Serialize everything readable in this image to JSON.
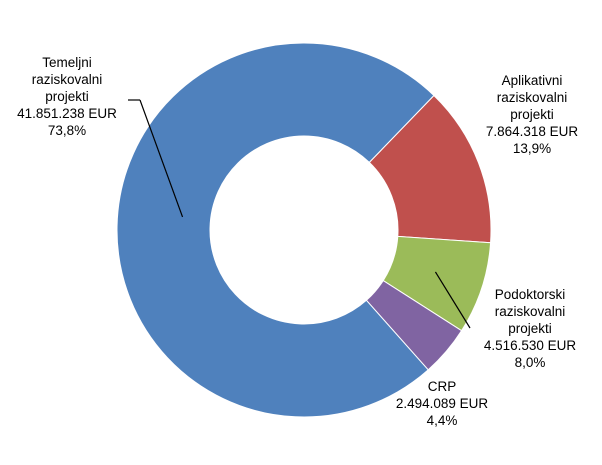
{
  "chart_data": {
    "type": "pie",
    "style": "donut",
    "title": "",
    "slices": [
      {
        "name_lines": [
          "Aplikativni",
          "raziskovalni",
          "projekti"
        ],
        "value": 7864318,
        "value_label": "7.864.318 EUR",
        "percent": 13.9,
        "percent_label": "13,9%",
        "color": "#c0504d"
      },
      {
        "name_lines": [
          "Podoktorski",
          "raziskovalni",
          "projekti"
        ],
        "value": 4516530,
        "value_label": "4.516.530 EUR",
        "percent": 8.0,
        "percent_label": "8,0%",
        "color": "#9bbb59"
      },
      {
        "name_lines": [
          "CRP"
        ],
        "value": 2494089,
        "value_label": "2.494.089 EUR",
        "percent": 4.4,
        "percent_label": "4,4%",
        "color": "#8064a2"
      },
      {
        "name_lines": [
          "Temeljni",
          "raziskovalni",
          "projekti"
        ],
        "value": 41851238,
        "value_label": "41.851.238 EUR",
        "percent": 73.8,
        "percent_label": "73,8%",
        "color": "#4f81bd"
      }
    ],
    "legend": "none",
    "leader_line_color": "#000000"
  }
}
